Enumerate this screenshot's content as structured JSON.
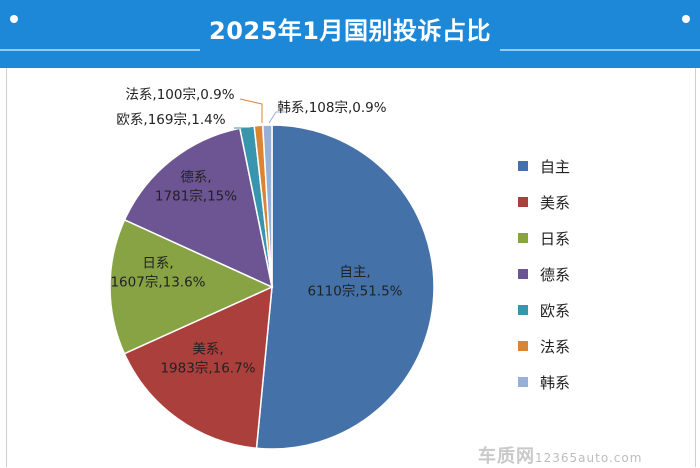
{
  "header": {
    "title": "2025年1月国别投诉占比"
  },
  "chart_data": {
    "type": "pie",
    "title": "2025年1月国别投诉占比",
    "unit": "宗",
    "slices": [
      {
        "name": "自主",
        "value": 6110,
        "percent": 51.5,
        "color": "#4472a8",
        "label_lines": [
          "自主,",
          "6110宗,51.5%"
        ]
      },
      {
        "name": "美系",
        "value": 1983,
        "percent": 16.7,
        "color": "#ab3f3c",
        "label_lines": [
          "美系,",
          "1983宗,16.7%"
        ]
      },
      {
        "name": "日系",
        "value": 1607,
        "percent": 13.6,
        "color": "#87a344",
        "label_lines": [
          "日系,",
          "1607宗,13.6%"
        ]
      },
      {
        "name": "德系",
        "value": 1781,
        "percent": 15,
        "color": "#6d5593",
        "label_lines": [
          "德系,",
          "1781宗,15%"
        ]
      },
      {
        "name": "欧系",
        "value": 169,
        "percent": 1.4,
        "color": "#3995ad",
        "label_lines": [
          "欧系,169宗,1.4%"
        ]
      },
      {
        "name": "法系",
        "value": 100,
        "percent": 0.9,
        "color": "#db8434",
        "label_lines": [
          "法系,100宗,0.9%"
        ]
      },
      {
        "name": "韩系",
        "value": 108,
        "percent": 0.9,
        "color": "#97b0d7",
        "label_lines": [
          "韩系,108宗,0.9%"
        ]
      }
    ],
    "legend": [
      "自主",
      "美系",
      "日系",
      "德系",
      "欧系",
      "法系",
      "韩系"
    ],
    "legend_position": "right"
  },
  "watermark": {
    "brand": "车质网",
    "site": "12365auto.com"
  }
}
